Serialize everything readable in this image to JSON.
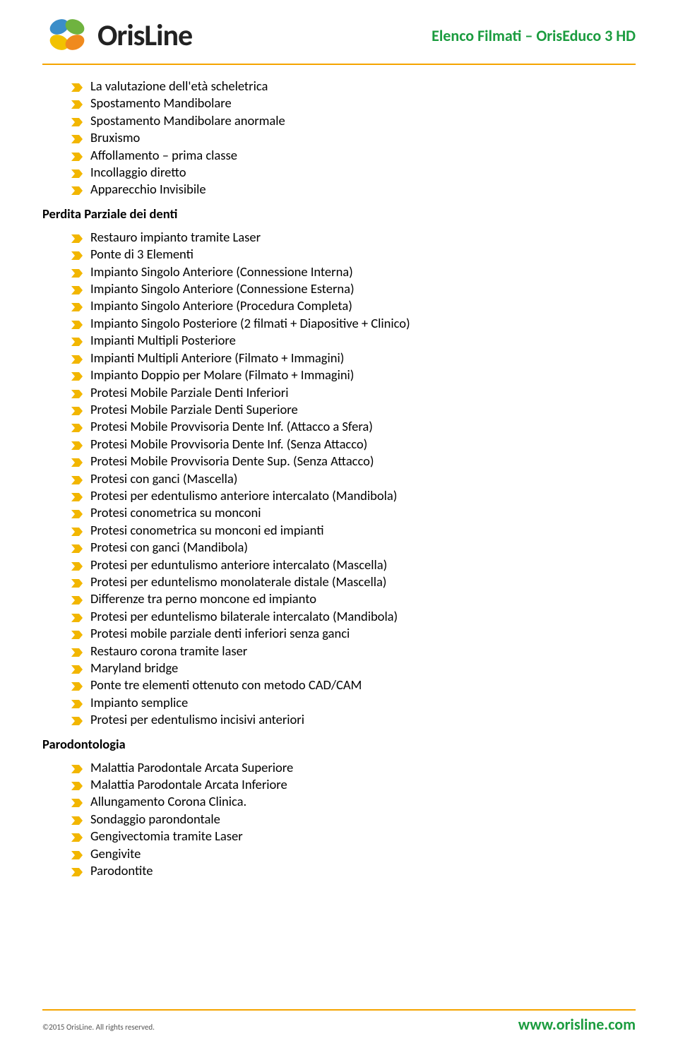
{
  "header": {
    "logo_text": "OrisLine",
    "title": "Elenco Filmati – OrisEduco 3 HD"
  },
  "colors": {
    "accent_green": "#1b9c3f",
    "accent_orange": "#f5a400",
    "bullet_yellow": "#f2b600",
    "text": "#000000",
    "logo_petal_blue": "#3b8ec9",
    "logo_petal_green": "#6fb33f",
    "logo_petal_orange": "#f08a1e",
    "logo_petal_yellow": "#f2c200"
  },
  "sections": [
    {
      "title": null,
      "items": [
        "La valutazione dell'età scheletrica",
        "Spostamento Mandibolare",
        "Spostamento Mandibolare anormale",
        "Bruxismo",
        "Affollamento – prima classe",
        "Incollaggio diretto",
        "Apparecchio Invisibile"
      ]
    },
    {
      "title": "Perdita Parziale dei denti",
      "items": [
        "Restauro impianto tramite Laser",
        "Ponte di 3 Elementi",
        "Impianto Singolo Anteriore (Connessione Interna)",
        "Impianto Singolo Anteriore (Connessione Esterna)",
        "Impianto Singolo Anteriore (Procedura Completa)",
        "Impianto Singolo Posteriore (2 filmati + Diapositive + Clinico)",
        "Impianti Multipli Posteriore",
        "Impianti Multipli Anteriore (Filmato + Immagini)",
        "Impianto Doppio per Molare (Filmato + Immagini)",
        "Protesi Mobile Parziale Denti Inferiori",
        "Protesi Mobile Parziale Denti Superiore",
        "Protesi Mobile Provvisoria Dente Inf. (Attacco a Sfera)",
        "Protesi Mobile Provvisoria Dente Inf. (Senza Attacco)",
        "Protesi Mobile Provvisoria Dente Sup. (Senza Attacco)",
        "Protesi con ganci (Mascella)",
        "Protesi per edentulismo anteriore intercalato (Mandibola)",
        "Protesi conometrica su monconi",
        "Protesi conometrica su monconi ed impianti",
        "Protesi con ganci (Mandibola)",
        "Protesi per eduntulismo anteriore intercalato (Mascella)",
        "Protesi per eduntelismo monolaterale distale (Mascella)",
        "Differenze tra perno moncone ed impianto",
        "Protesi per eduntelismo bilaterale intercalato (Mandibola)",
        "Protesi mobile parziale denti inferiori senza ganci",
        "Restauro corona tramite laser",
        "Maryland bridge",
        "Ponte tre elementi ottenuto con metodo CAD/CAM",
        "Impianto semplice",
        "Protesi per edentulismo incisivi anteriori"
      ]
    },
    {
      "title": "Parodontologia",
      "items": [
        "Malattia Parodontale Arcata Superiore",
        "Malattia Parodontale Arcata Inferiore",
        "Allungamento Corona Clinica.",
        "Sondaggio parondontale",
        "Gengivectomia tramite Laser",
        "Gengivite",
        "Parodontite"
      ]
    }
  ],
  "footer": {
    "copyright": "©2015 OrisLine. All rights reserved.",
    "url": "www.orisline.com"
  }
}
